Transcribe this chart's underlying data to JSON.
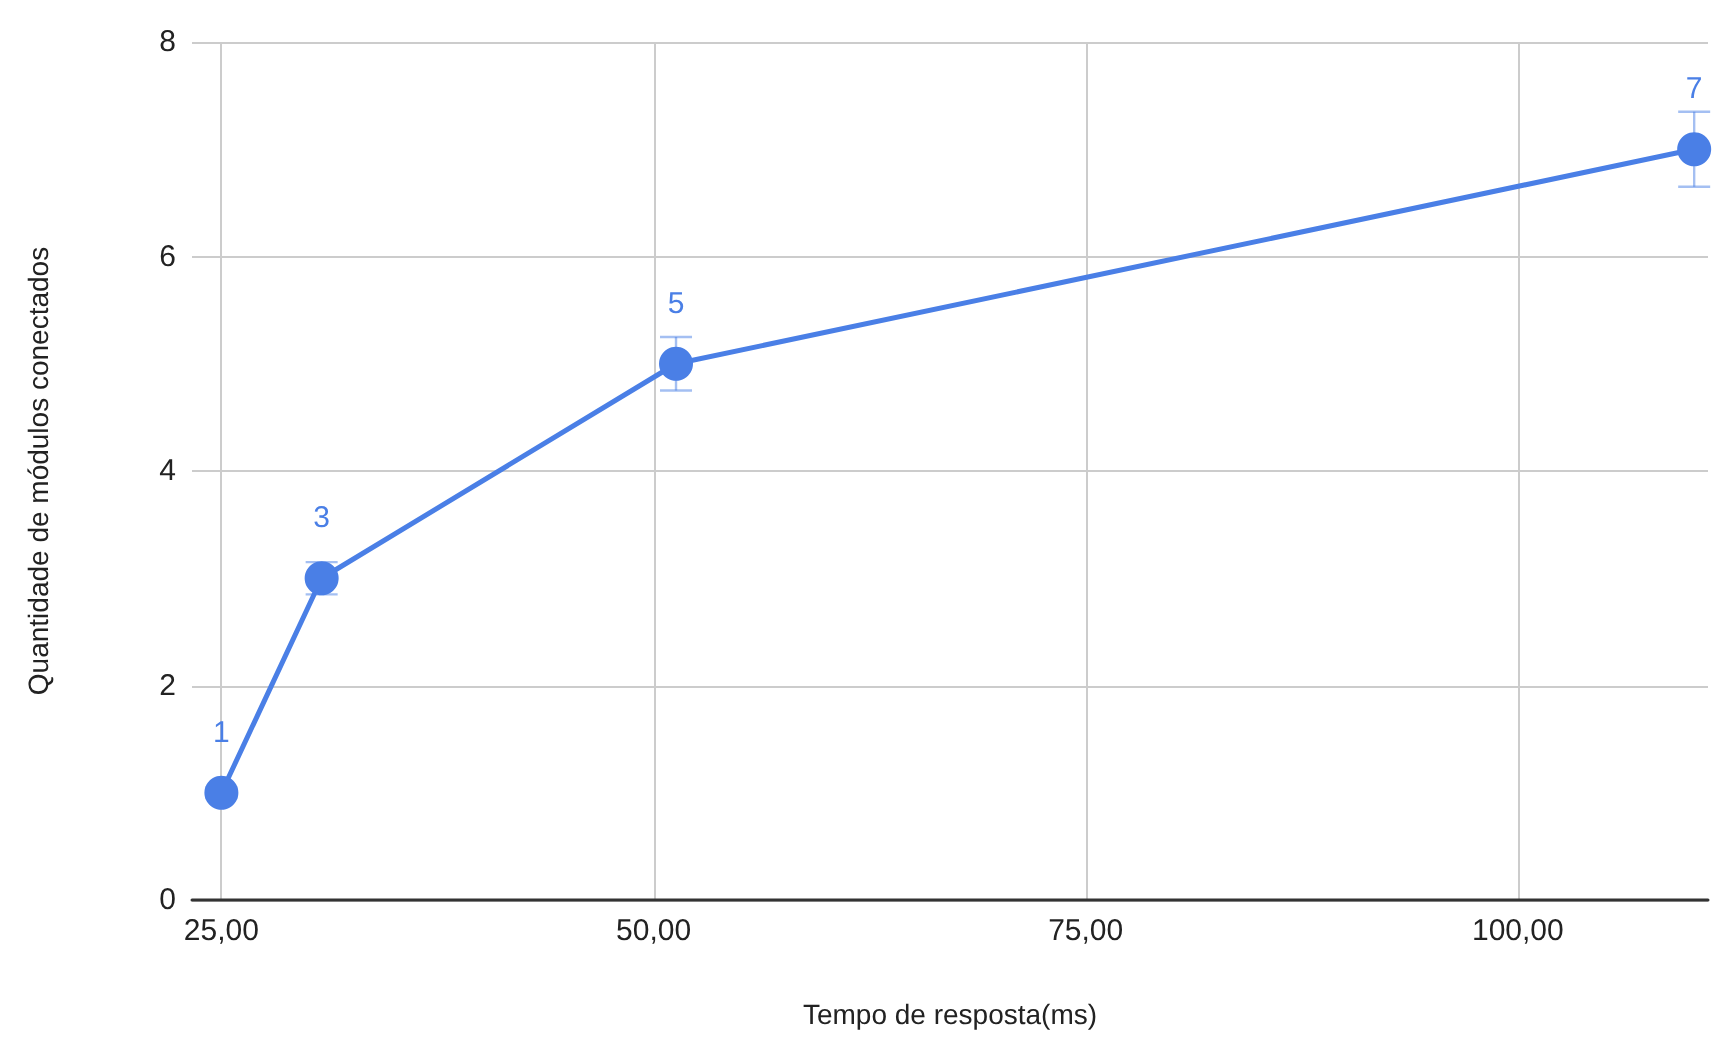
{
  "chart_data": {
    "type": "line",
    "xlabel": "Tempo de resposta(ms)",
    "ylabel": "Quantidade de módulos conectados",
    "x": [
      25,
      30.8,
      51.3,
      110.2
    ],
    "series": [
      {
        "color": "#4a7fe6",
        "values": [
          1,
          3,
          5,
          7
        ],
        "errors": [
          0.05,
          0.15,
          0.25,
          0.35
        ]
      }
    ],
    "xlim": [
      23.3,
      111
    ],
    "xticks": [
      {
        "value": 25,
        "label": "25,00"
      },
      {
        "value": 50,
        "label": "50,00"
      },
      {
        "value": 75,
        "label": "75,00"
      },
      {
        "value": 100,
        "label": "100,00"
      }
    ],
    "ylim": [
      0,
      8
    ],
    "yticks": [
      0,
      2,
      4,
      6,
      8
    ],
    "grid": true,
    "marker": "circle",
    "line_style": "solid",
    "data_labels": true
  }
}
